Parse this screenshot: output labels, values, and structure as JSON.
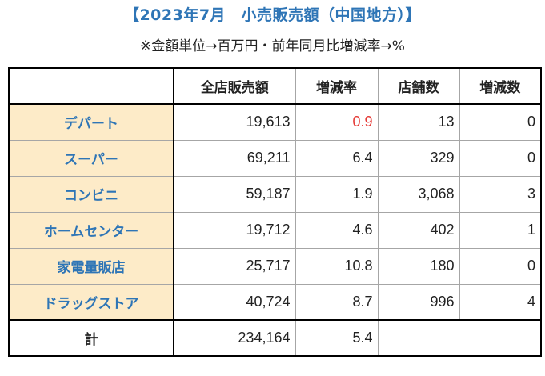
{
  "title": "【2023年7月　小売販売額（中国地方）】",
  "note": "※金額単位→百万円・前年同月比増減率→%",
  "headers": [
    "",
    "全店販売額",
    "増減率",
    "店舗数",
    "増減数"
  ],
  "rows": [
    {
      "category": "デパート",
      "sales": "19,613",
      "rate": "0.9",
      "stores": "13",
      "change": "0"
    },
    {
      "category": "スーパー",
      "sales": "69,211",
      "rate": "6.4",
      "stores": "329",
      "change": "0"
    },
    {
      "category": "コンビニ",
      "sales": "59,187",
      "rate": "1.9",
      "stores": "3,068",
      "change": "3"
    },
    {
      "category": "ホームセンター",
      "sales": "19,712",
      "rate": "4.6",
      "stores": "402",
      "change": "1"
    },
    {
      "category": "家電量販店",
      "sales": "25,717",
      "rate": "10.8",
      "stores": "180",
      "change": "0"
    },
    {
      "category": "ドラッグストア",
      "sales": "40,724",
      "rate": "8.7",
      "stores": "996",
      "change": "4"
    }
  ],
  "total": {
    "label": "計",
    "sales": "234,164",
    "rate": "5.4"
  },
  "colors": {
    "title": "#2e75b6",
    "category_bg": "#fdebc8",
    "highlight": "#e53935"
  }
}
